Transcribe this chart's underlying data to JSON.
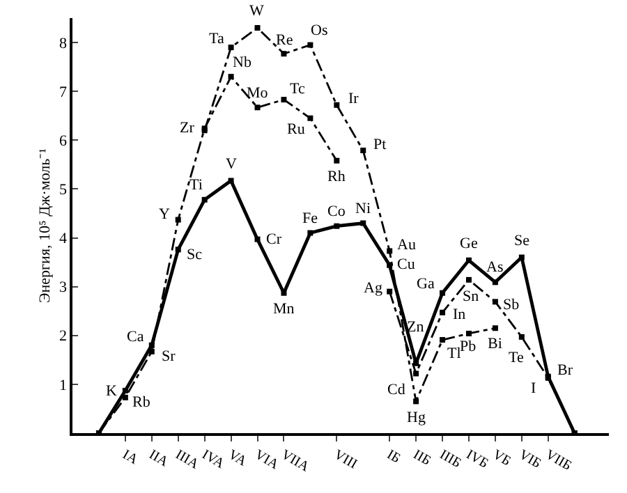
{
  "chart_data": {
    "type": "line",
    "ylabel": "Энергия, 10⁵ Дж·моль⁻¹",
    "categories": [
      null,
      "IA",
      "IIA",
      "IIIA",
      "IVA",
      "VA",
      "VIA",
      "VIIA",
      null,
      "VIII",
      null,
      "IБ",
      "IIБ",
      "IIIБ",
      "IVБ",
      "VБ",
      "VIБ",
      "VIIБ",
      null
    ],
    "ylim": [
      0,
      8.5
    ],
    "yticks": [
      1,
      2,
      3,
      4,
      5,
      6,
      7,
      8
    ],
    "marker": "square",
    "series": [
      {
        "color": "#000000",
        "line_style": "solid",
        "values": [
          0,
          0.87,
          1.8,
          3.76,
          4.78,
          5.17,
          3.97,
          2.87,
          4.1,
          4.24,
          4.3,
          3.44,
          1.43,
          2.87,
          3.54,
          3.09,
          3.6,
          1.16,
          0
        ]
      },
      {
        "color": "#000000",
        "line_style": "dashed",
        "values": [
          0,
          0.73,
          1.67,
          4.37,
          6.24,
          7.3,
          6.67,
          6.83,
          6.45,
          5.58,
          null,
          2.9,
          1.22,
          2.47,
          3.14,
          2.69,
          1.97,
          1.13,
          0
        ]
      },
      {
        "color": "#000000",
        "line_style": "dashed",
        "values": [
          null,
          null,
          null,
          null,
          6.2,
          7.9,
          8.3,
          7.77,
          7.95,
          6.72,
          5.79,
          3.73,
          0.65,
          1.91,
          2.04,
          2.15,
          null,
          null,
          null
        ]
      }
    ],
    "annotations": [
      "K",
      "Ca",
      "Sc",
      "Ti",
      "V",
      "Cr",
      "Mn",
      "Fe",
      "Co",
      "Ni",
      "Cu",
      "Zn",
      "Ga",
      "Ge",
      "As",
      "Se",
      "Br",
      "Rb",
      "Sr",
      "Y",
      "Zr",
      "Nb",
      "Mo",
      "Tc",
      "Ru",
      "Rh",
      "Ag",
      "Cd",
      "In",
      "Sn",
      "Sb",
      "Te",
      "I",
      "Ta",
      "W",
      "Re",
      "Os",
      "Ir",
      "Pt",
      "Au",
      "Hg",
      "Tl",
      "Pb",
      "Bi"
    ]
  }
}
